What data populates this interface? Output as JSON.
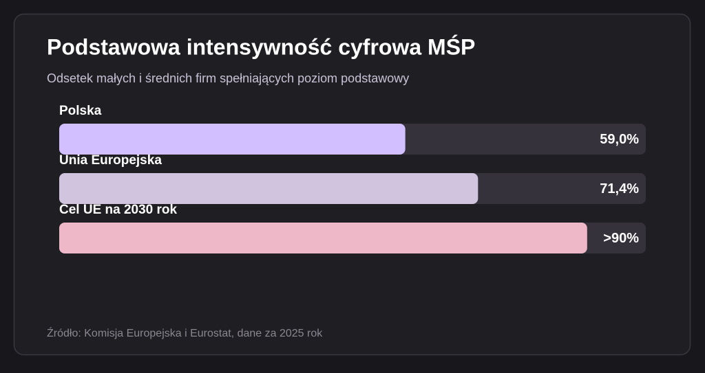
{
  "chart_data": {
    "type": "bar",
    "orientation": "horizontal",
    "title": "Podstawowa intensywność cyfrowa MŚP",
    "subtitle": "Odsetek małych i średnich firm spełniających poziom podstawowy",
    "source": "Źródło: Komisja Europejska i Eurostat, dane za 2025 rok",
    "categories": [
      "Polska",
      "Unia Europejska",
      "Cel UE na 2030 rok"
    ],
    "values": [
      59.0,
      71.4,
      90
    ],
    "value_labels": [
      "59,0%",
      "71,4%",
      ">90%"
    ],
    "colors": [
      "#d2bfff",
      "#d0c4de",
      "#efb8c9"
    ],
    "xlim": [
      0,
      100
    ]
  }
}
